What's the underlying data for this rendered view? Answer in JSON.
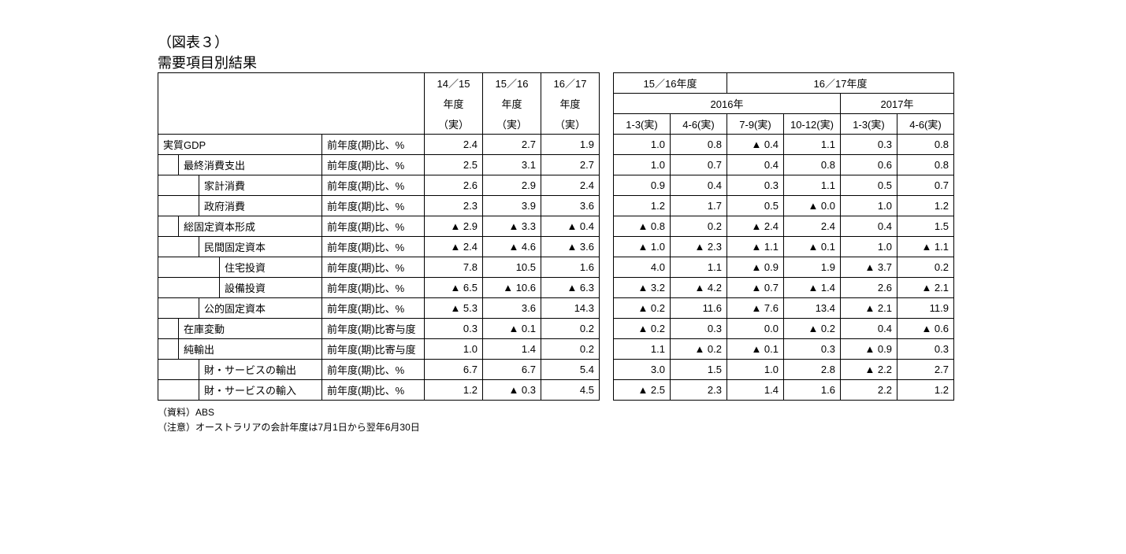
{
  "title_line1": "（図表３）",
  "title_line2": "需要項目別結果",
  "header": {
    "y1": "14／15",
    "y2": "15／16",
    "y3": "16／17",
    "fy": "年度",
    "act": "（実）",
    "grp1": "15／16年度",
    "grp2": "16／17年度",
    "yr2016": "2016年",
    "yr2017": "2017年",
    "q1": "1-3(実)",
    "q2": "4-6(実)",
    "q3": "7-9(実)",
    "q4": "10-12(実)",
    "q5": "1-3(実)",
    "q6": "4-6(実)"
  },
  "unit_yoy": "前年度(期)比、%",
  "unit_contrib": "前年度(期)比寄与度",
  "rows": [
    {
      "indent": 0,
      "label": "実質GDP",
      "unit": "yoy",
      "v": [
        "2.4",
        "2.7",
        "1.9"
      ],
      "q": [
        "1.0",
        "0.8",
        "▲ 0.4",
        "1.1",
        "0.3",
        "0.8"
      ]
    },
    {
      "indent": 1,
      "label": "最終消費支出",
      "unit": "yoy",
      "v": [
        "2.5",
        "3.1",
        "2.7"
      ],
      "q": [
        "1.0",
        "0.7",
        "0.4",
        "0.8",
        "0.6",
        "0.8"
      ]
    },
    {
      "indent": 2,
      "label": "家計消費",
      "unit": "yoy",
      "v": [
        "2.6",
        "2.9",
        "2.4"
      ],
      "q": [
        "0.9",
        "0.4",
        "0.3",
        "1.1",
        "0.5",
        "0.7"
      ]
    },
    {
      "indent": 2,
      "label": "政府消費",
      "unit": "yoy",
      "v": [
        "2.3",
        "3.9",
        "3.6"
      ],
      "q": [
        "1.2",
        "1.7",
        "0.5",
        "▲ 0.0",
        "1.0",
        "1.2"
      ]
    },
    {
      "indent": 1,
      "label": "総固定資本形成",
      "unit": "yoy",
      "v": [
        "▲ 2.9",
        "▲ 3.3",
        "▲ 0.4"
      ],
      "q": [
        "▲ 0.8",
        "0.2",
        "▲ 2.4",
        "2.4",
        "0.4",
        "1.5"
      ]
    },
    {
      "indent": 2,
      "label": "民間固定資本",
      "unit": "yoy",
      "v": [
        "▲ 2.4",
        "▲ 4.6",
        "▲ 3.6"
      ],
      "q": [
        "▲ 1.0",
        "▲ 2.3",
        "▲ 1.1",
        "▲ 0.1",
        "1.0",
        "▲ 1.1"
      ]
    },
    {
      "indent": 3,
      "label": "住宅投資",
      "unit": "yoy",
      "v": [
        "7.8",
        "10.5",
        "1.6"
      ],
      "q": [
        "4.0",
        "1.1",
        "▲ 0.9",
        "1.9",
        "▲ 3.7",
        "0.2"
      ]
    },
    {
      "indent": 3,
      "label": "設備投資",
      "unit": "yoy",
      "v": [
        "▲ 6.5",
        "▲ 10.6",
        "▲ 6.3"
      ],
      "q": [
        "▲ 3.2",
        "▲ 4.2",
        "▲ 0.7",
        "▲ 1.4",
        "2.6",
        "▲ 2.1"
      ]
    },
    {
      "indent": 2,
      "label": "公的固定資本",
      "unit": "yoy",
      "v": [
        "▲ 5.3",
        "3.6",
        "14.3"
      ],
      "q": [
        "▲ 0.2",
        "11.6",
        "▲ 7.6",
        "13.4",
        "▲ 2.1",
        "11.9"
      ]
    },
    {
      "indent": 1,
      "label": "在庫変動",
      "unit": "contrib",
      "v": [
        "0.3",
        "▲ 0.1",
        "0.2"
      ],
      "q": [
        "▲ 0.2",
        "0.3",
        "0.0",
        "▲ 0.2",
        "0.4",
        "▲ 0.6"
      ]
    },
    {
      "indent": 1,
      "label": "純輸出",
      "unit": "contrib",
      "v": [
        "1.0",
        "1.4",
        "0.2"
      ],
      "q": [
        "1.1",
        "▲ 0.2",
        "▲ 0.1",
        "0.3",
        "▲ 0.9",
        "0.3"
      ]
    },
    {
      "indent": 2,
      "label": "財・サービスの輸出",
      "unit": "yoy",
      "v": [
        "6.7",
        "6.7",
        "5.4"
      ],
      "q": [
        "3.0",
        "1.5",
        "1.0",
        "2.8",
        "▲ 2.2",
        "2.7"
      ]
    },
    {
      "indent": 2,
      "label": "財・サービスの輸入",
      "unit": "yoy",
      "v": [
        "1.2",
        "▲ 0.3",
        "4.5"
      ],
      "q": [
        "▲ 2.5",
        "2.3",
        "1.4",
        "1.6",
        "2.2",
        "1.2"
      ]
    }
  ],
  "footer1": "（資料）ABS",
  "footer2": "（注意）オーストラリアの会計年度は7月1日から翌年6月30日"
}
